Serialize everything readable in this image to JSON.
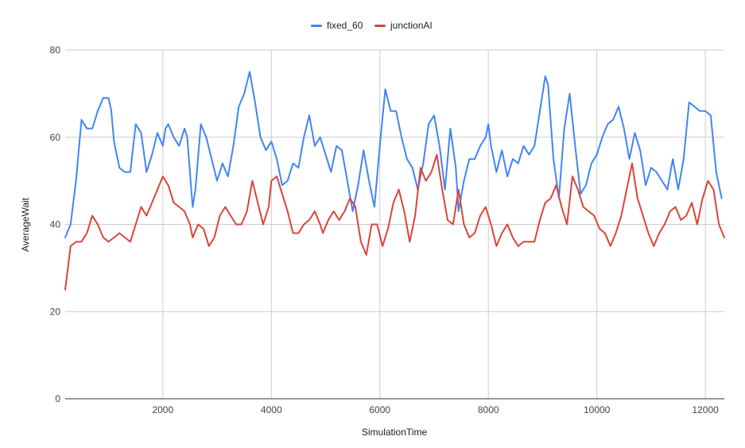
{
  "chart_data": {
    "type": "line",
    "xlabel": "SimulationTime",
    "ylabel": "AverageWait",
    "xlim": [
      200,
      12350
    ],
    "ylim": [
      0,
      80
    ],
    "x_ticks": [
      2000,
      4000,
      6000,
      8000,
      10000,
      12000
    ],
    "y_ticks": [
      0,
      20,
      40,
      60,
      80
    ],
    "grid": true,
    "legend_position": "top-center",
    "series": [
      {
        "name": "fixed_60",
        "color": "#4285f4",
        "points": [
          [
            200,
            37
          ],
          [
            300,
            40
          ],
          [
            400,
            50
          ],
          [
            500,
            64
          ],
          [
            600,
            62
          ],
          [
            700,
            62
          ],
          [
            800,
            66
          ],
          [
            900,
            69
          ],
          [
            1000,
            69
          ],
          [
            1050,
            66
          ],
          [
            1100,
            59
          ],
          [
            1200,
            53
          ],
          [
            1300,
            52
          ],
          [
            1400,
            52
          ],
          [
            1500,
            63
          ],
          [
            1600,
            61
          ],
          [
            1700,
            52
          ],
          [
            1800,
            56
          ],
          [
            1900,
            61
          ],
          [
            2000,
            58
          ],
          [
            2050,
            62
          ],
          [
            2100,
            63
          ],
          [
            2200,
            60
          ],
          [
            2300,
            58
          ],
          [
            2400,
            62
          ],
          [
            2450,
            60
          ],
          [
            2550,
            44
          ],
          [
            2600,
            48
          ],
          [
            2700,
            63
          ],
          [
            2800,
            60
          ],
          [
            2900,
            55
          ],
          [
            3000,
            50
          ],
          [
            3100,
            54
          ],
          [
            3200,
            51
          ],
          [
            3300,
            58
          ],
          [
            3400,
            67
          ],
          [
            3500,
            70
          ],
          [
            3600,
            75
          ],
          [
            3700,
            68
          ],
          [
            3800,
            60
          ],
          [
            3900,
            57
          ],
          [
            4000,
            59
          ],
          [
            4100,
            55
          ],
          [
            4200,
            49
          ],
          [
            4300,
            50
          ],
          [
            4400,
            54
          ],
          [
            4500,
            53
          ],
          [
            4600,
            60
          ],
          [
            4700,
            65
          ],
          [
            4800,
            58
          ],
          [
            4900,
            60
          ],
          [
            5000,
            56
          ],
          [
            5100,
            52
          ],
          [
            5200,
            58
          ],
          [
            5300,
            57
          ],
          [
            5400,
            50
          ],
          [
            5500,
            43
          ],
          [
            5600,
            49
          ],
          [
            5700,
            57
          ],
          [
            5800,
            50
          ],
          [
            5900,
            44
          ],
          [
            6000,
            58
          ],
          [
            6100,
            71
          ],
          [
            6200,
            66
          ],
          [
            6300,
            66
          ],
          [
            6400,
            60
          ],
          [
            6500,
            55
          ],
          [
            6600,
            53
          ],
          [
            6700,
            48
          ],
          [
            6800,
            54
          ],
          [
            6900,
            63
          ],
          [
            7000,
            65
          ],
          [
            7100,
            58
          ],
          [
            7200,
            48
          ],
          [
            7300,
            62
          ],
          [
            7400,
            53
          ],
          [
            7450,
            43
          ],
          [
            7550,
            50
          ],
          [
            7650,
            55
          ],
          [
            7750,
            55
          ],
          [
            7850,
            58
          ],
          [
            7950,
            60
          ],
          [
            8000,
            63
          ],
          [
            8050,
            58
          ],
          [
            8150,
            52
          ],
          [
            8250,
            57
          ],
          [
            8350,
            51
          ],
          [
            8450,
            55
          ],
          [
            8550,
            54
          ],
          [
            8650,
            58
          ],
          [
            8750,
            56
          ],
          [
            8850,
            58
          ],
          [
            8950,
            66
          ],
          [
            9050,
            74
          ],
          [
            9100,
            72
          ],
          [
            9200,
            55
          ],
          [
            9300,
            46
          ],
          [
            9400,
            62
          ],
          [
            9500,
            70
          ],
          [
            9600,
            58
          ],
          [
            9700,
            47
          ],
          [
            9800,
            49
          ],
          [
            9900,
            54
          ],
          [
            10000,
            56
          ],
          [
            10100,
            60
          ],
          [
            10200,
            63
          ],
          [
            10300,
            64
          ],
          [
            10400,
            67
          ],
          [
            10500,
            62
          ],
          [
            10600,
            55
          ],
          [
            10700,
            61
          ],
          [
            10800,
            57
          ],
          [
            10900,
            49
          ],
          [
            11000,
            53
          ],
          [
            11100,
            52
          ],
          [
            11200,
            50
          ],
          [
            11300,
            48
          ],
          [
            11400,
            55
          ],
          [
            11500,
            48
          ],
          [
            11600,
            55
          ],
          [
            11700,
            68
          ],
          [
            11800,
            67
          ],
          [
            11900,
            66
          ],
          [
            12000,
            66
          ],
          [
            12100,
            65
          ],
          [
            12200,
            52
          ],
          [
            12300,
            46
          ]
        ]
      },
      {
        "name": "junctionAI",
        "color": "#db4437",
        "points": [
          [
            200,
            25
          ],
          [
            250,
            30
          ],
          [
            300,
            35
          ],
          [
            400,
            36
          ],
          [
            500,
            36
          ],
          [
            600,
            38
          ],
          [
            700,
            42
          ],
          [
            800,
            40
          ],
          [
            900,
            37
          ],
          [
            1000,
            36
          ],
          [
            1100,
            37
          ],
          [
            1200,
            38
          ],
          [
            1300,
            37
          ],
          [
            1400,
            36
          ],
          [
            1500,
            40
          ],
          [
            1600,
            44
          ],
          [
            1700,
            42
          ],
          [
            1800,
            45
          ],
          [
            1900,
            48
          ],
          [
            2000,
            51
          ],
          [
            2100,
            49
          ],
          [
            2200,
            45
          ],
          [
            2300,
            44
          ],
          [
            2400,
            43
          ],
          [
            2500,
            40
          ],
          [
            2550,
            37
          ],
          [
            2650,
            40
          ],
          [
            2750,
            39
          ],
          [
            2850,
            35
          ],
          [
            2950,
            37
          ],
          [
            3050,
            42
          ],
          [
            3150,
            44
          ],
          [
            3250,
            42
          ],
          [
            3350,
            40
          ],
          [
            3450,
            40
          ],
          [
            3550,
            43
          ],
          [
            3650,
            50
          ],
          [
            3750,
            45
          ],
          [
            3850,
            40
          ],
          [
            3950,
            44
          ],
          [
            4000,
            50
          ],
          [
            4100,
            51
          ],
          [
            4200,
            47
          ],
          [
            4300,
            43
          ],
          [
            4400,
            38
          ],
          [
            4500,
            38
          ],
          [
            4600,
            40
          ],
          [
            4700,
            41
          ],
          [
            4800,
            43
          ],
          [
            4900,
            40
          ],
          [
            4950,
            38
          ],
          [
            5050,
            41
          ],
          [
            5150,
            43
          ],
          [
            5250,
            41
          ],
          [
            5350,
            43
          ],
          [
            5450,
            46
          ],
          [
            5550,
            44
          ],
          [
            5600,
            40
          ],
          [
            5650,
            36
          ],
          [
            5750,
            33
          ],
          [
            5850,
            40
          ],
          [
            5950,
            40
          ],
          [
            6050,
            35
          ],
          [
            6150,
            39
          ],
          [
            6250,
            45
          ],
          [
            6350,
            48
          ],
          [
            6450,
            43
          ],
          [
            6550,
            36
          ],
          [
            6650,
            42
          ],
          [
            6750,
            53
          ],
          [
            6850,
            50
          ],
          [
            6950,
            52
          ],
          [
            7050,
            56
          ],
          [
            7150,
            48
          ],
          [
            7250,
            41
          ],
          [
            7350,
            40
          ],
          [
            7450,
            48
          ],
          [
            7550,
            40
          ],
          [
            7650,
            37
          ],
          [
            7750,
            38
          ],
          [
            7850,
            42
          ],
          [
            7950,
            44
          ],
          [
            8050,
            40
          ],
          [
            8150,
            35
          ],
          [
            8250,
            38
          ],
          [
            8350,
            40
          ],
          [
            8450,
            37
          ],
          [
            8550,
            35
          ],
          [
            8650,
            36
          ],
          [
            8750,
            36
          ],
          [
            8850,
            36
          ],
          [
            8950,
            41
          ],
          [
            9050,
            45
          ],
          [
            9150,
            46
          ],
          [
            9250,
            49
          ],
          [
            9350,
            44
          ],
          [
            9450,
            40
          ],
          [
            9550,
            51
          ],
          [
            9650,
            48
          ],
          [
            9750,
            44
          ],
          [
            9850,
            43
          ],
          [
            9950,
            42
          ],
          [
            10050,
            39
          ],
          [
            10150,
            38
          ],
          [
            10250,
            35
          ],
          [
            10350,
            38
          ],
          [
            10450,
            42
          ],
          [
            10550,
            48
          ],
          [
            10650,
            54
          ],
          [
            10750,
            46
          ],
          [
            10850,
            42
          ],
          [
            10950,
            38
          ],
          [
            11050,
            35
          ],
          [
            11150,
            38
          ],
          [
            11250,
            40
          ],
          [
            11350,
            43
          ],
          [
            11450,
            44
          ],
          [
            11550,
            41
          ],
          [
            11650,
            42
          ],
          [
            11750,
            45
          ],
          [
            11850,
            40
          ],
          [
            11950,
            46
          ],
          [
            12050,
            50
          ],
          [
            12150,
            48
          ],
          [
            12250,
            40
          ],
          [
            12350,
            37
          ]
        ]
      }
    ]
  }
}
